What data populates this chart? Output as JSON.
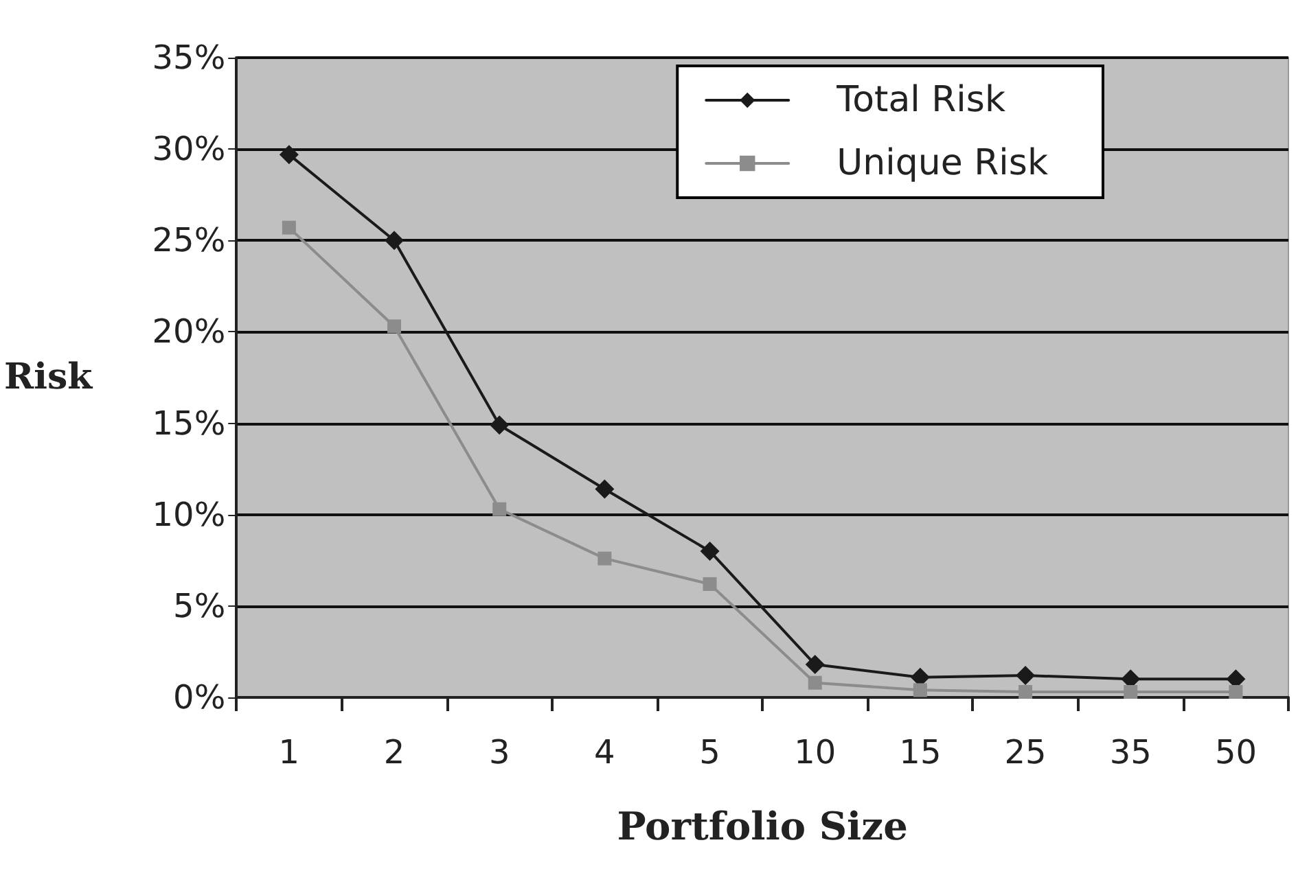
{
  "chart_data": {
    "type": "line",
    "xlabel": "Portfolio Size",
    "ylabel": "Risk",
    "categories": [
      "1",
      "2",
      "3",
      "4",
      "5",
      "10",
      "15",
      "25",
      "35",
      "50"
    ],
    "series": [
      {
        "name": "Total Risk",
        "color": "#1a1a1a",
        "marker": "diamond",
        "values": [
          29.7,
          25,
          14.9,
          11.4,
          8,
          1.8,
          1.1,
          1.2,
          1,
          1
        ]
      },
      {
        "name": "Unique Risk",
        "color": "#8c8c8c",
        "marker": "square",
        "values": [
          25.7,
          20.3,
          10.3,
          7.6,
          6.2,
          0.8,
          0.4,
          0.3,
          0.3,
          0.3
        ]
      }
    ],
    "ylim": [
      0,
      35
    ],
    "yticks": [
      {
        "value": 0,
        "label": "0%"
      },
      {
        "value": 5,
        "label": "5%"
      },
      {
        "value": 10,
        "label": "10%"
      },
      {
        "value": 15,
        "label": "15%"
      },
      {
        "value": 20,
        "label": "20%"
      },
      {
        "value": 25,
        "label": "25%"
      },
      {
        "value": 30,
        "label": "30%"
      },
      {
        "value": 35,
        "label": "35%"
      }
    ],
    "grid": "y",
    "legend": "top right",
    "line_style": "solid"
  }
}
